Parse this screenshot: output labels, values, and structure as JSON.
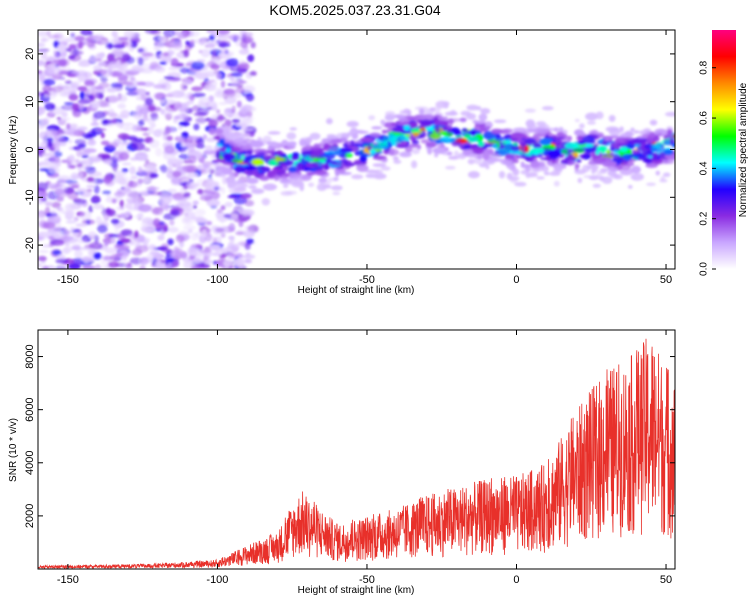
{
  "title": "KOM5.2025.037.23.31.G04",
  "chart_data": [
    {
      "type": "heatmap",
      "xlabel": "Height of straight line (km)",
      "ylabel": "Frequency (Hz)",
      "xlim": [
        -160,
        53
      ],
      "ylim": [
        -25,
        25
      ],
      "xticks": [
        -150,
        -100,
        -50,
        0,
        50
      ],
      "yticks": [
        -20,
        -10,
        0,
        10,
        20
      ],
      "colorbar": {
        "label": "Normalized spectral amplitude",
        "range": [
          0.0,
          0.95
        ],
        "ticks": [
          0.0,
          0.2,
          0.4,
          0.6,
          0.8
        ],
        "colors": [
          "#ffffff",
          "#c9a6ff",
          "#8a2be2",
          "#2200ff",
          "#00ffff",
          "#00ff00",
          "#ffff00",
          "#ff8800",
          "#ff0000",
          "#ff007f"
        ]
      },
      "ridge": {
        "note_x_km": [
          -102,
          -95,
          -85,
          -75,
          -65,
          -55,
          -50,
          -45,
          -40,
          -35,
          -30,
          -25,
          -20,
          -15,
          -10,
          -5,
          0,
          5,
          10,
          15,
          20,
          25,
          30,
          35,
          40,
          45,
          50,
          53
        ],
        "freq_hz": [
          2,
          -2,
          -3,
          -2.5,
          -2,
          -1,
          0,
          1,
          3,
          3.5,
          4,
          3.5,
          3,
          2.5,
          2,
          1,
          0,
          0,
          0.5,
          0,
          -0.5,
          0.5,
          0,
          -1,
          -0.5,
          0,
          0.5,
          1.5
        ]
      },
      "noise_region_x_km": [
        -160,
        -92
      ]
    },
    {
      "type": "line",
      "xlabel": "Height of straight line (km)",
      "ylabel": "SNR (10 * v/v)",
      "xlim": [
        -160,
        53
      ],
      "ylim": [
        0,
        9000
      ],
      "xticks": [
        -150,
        -100,
        -50,
        0,
        50
      ],
      "yticks": [
        2000,
        4000,
        6000,
        8000
      ],
      "color": "#e8302a",
      "envelope": {
        "x_km": [
          -160,
          -120,
          -100,
          -90,
          -80,
          -72,
          -60,
          -50,
          -40,
          -30,
          -20,
          -10,
          0,
          10,
          20,
          30,
          40,
          45,
          50,
          53
        ],
        "snr_max": [
          120,
          200,
          350,
          900,
          1400,
          3000,
          1700,
          2000,
          2300,
          2800,
          3100,
          3400,
          3500,
          4000,
          6000,
          7500,
          8200,
          9000,
          7600,
          7200
        ]
      }
    }
  ]
}
